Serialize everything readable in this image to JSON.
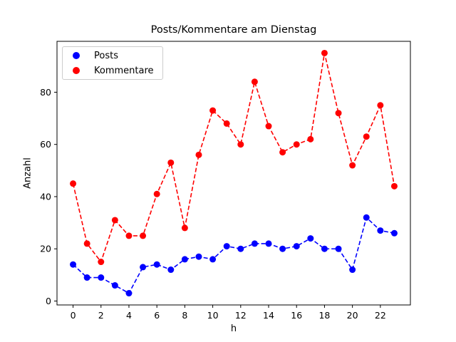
{
  "chart_data": {
    "type": "line",
    "title": "Posts/Kommentare am Dienstag",
    "xlabel": "h",
    "ylabel": "Anzahl",
    "x": [
      0,
      1,
      2,
      3,
      4,
      5,
      6,
      7,
      8,
      9,
      10,
      11,
      12,
      13,
      14,
      15,
      16,
      17,
      18,
      19,
      20,
      21,
      22,
      23
    ],
    "xlim": [
      -1.15,
      24.15
    ],
    "ylim": [
      -1.5,
      99.5
    ],
    "xticks": [
      0,
      2,
      4,
      6,
      8,
      10,
      12,
      14,
      16,
      18,
      20,
      22
    ],
    "yticks": [
      0,
      20,
      40,
      60,
      80
    ],
    "grid": false,
    "legend_position": "upper left",
    "series": [
      {
        "name": "Posts",
        "color": "#0000ff",
        "linestyle": "dashed",
        "marker": "circle",
        "values": [
          14,
          9,
          9,
          6,
          3,
          13,
          14,
          12,
          16,
          17,
          16,
          21,
          20,
          22,
          22,
          20,
          21,
          24,
          20,
          20,
          12,
          32,
          27,
          26
        ]
      },
      {
        "name": "Kommentare",
        "color": "#ff0000",
        "linestyle": "dashed",
        "marker": "circle",
        "values": [
          45,
          22,
          15,
          31,
          25,
          25,
          41,
          53,
          28,
          56,
          73,
          68,
          60,
          84,
          67,
          57,
          60,
          62,
          95,
          72,
          52,
          63,
          75,
          44
        ]
      }
    ]
  }
}
